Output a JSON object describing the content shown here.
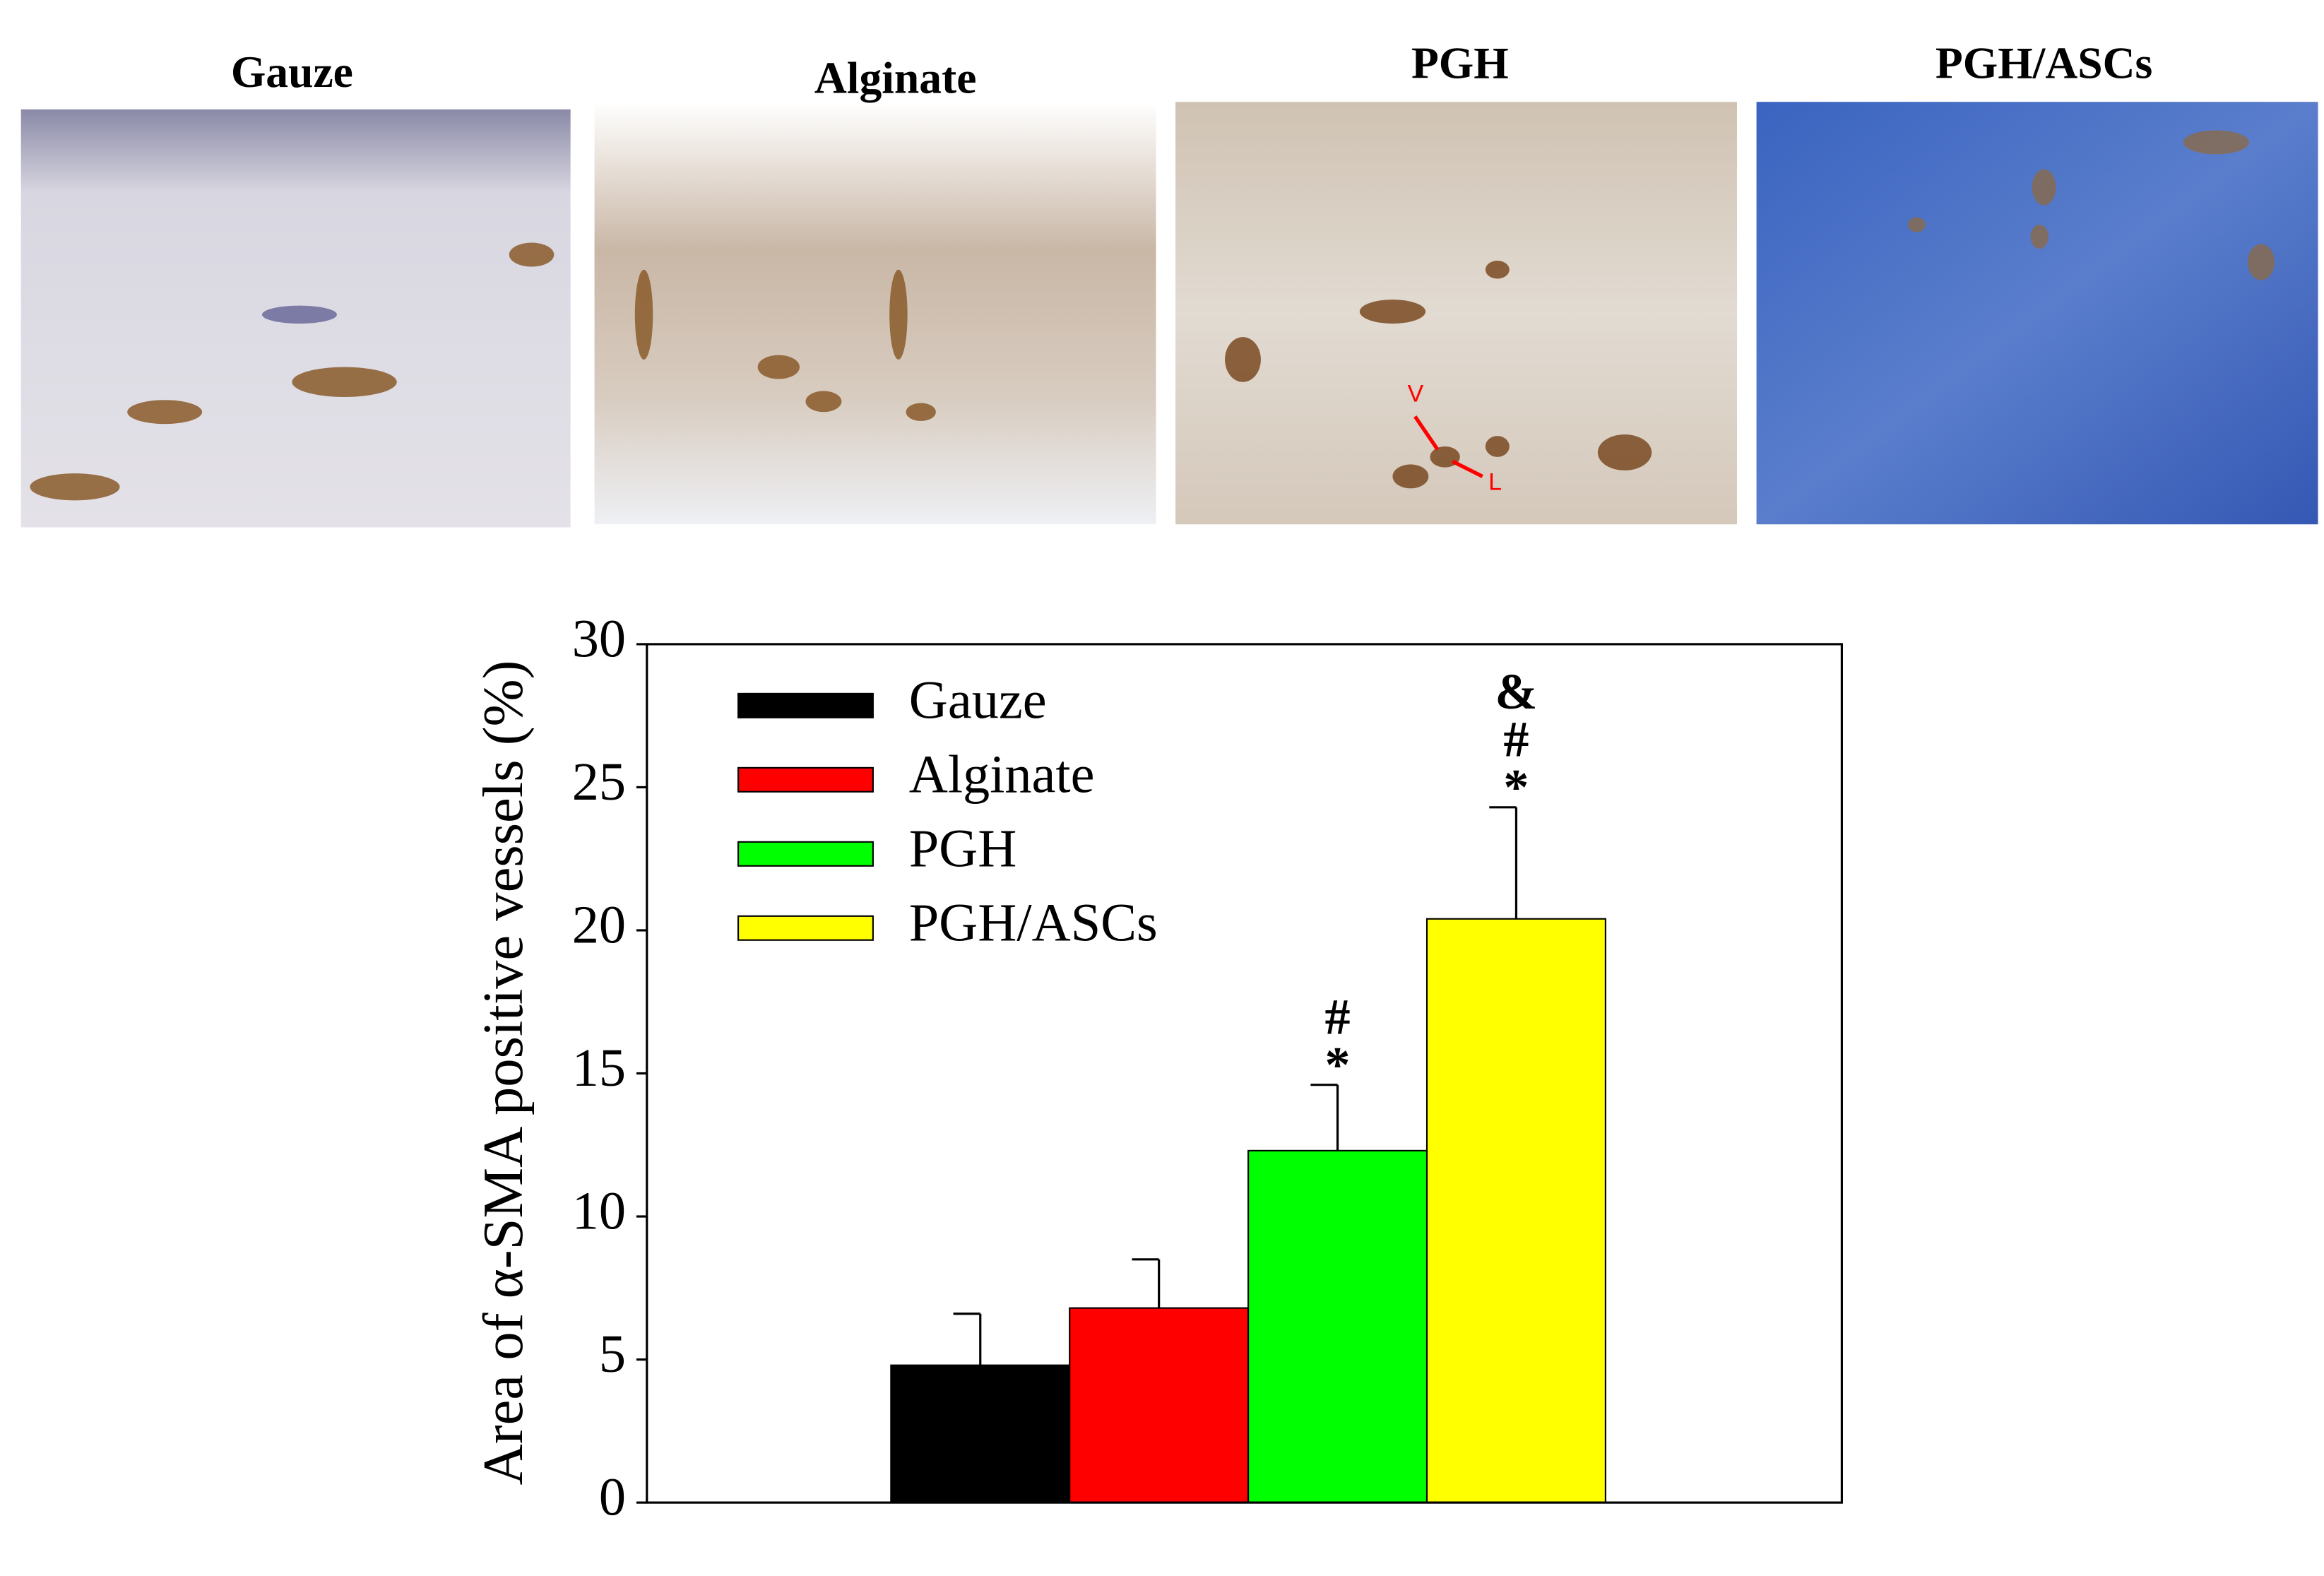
{
  "panels": [
    {
      "title": "Gauze"
    },
    {
      "title": "Alginate"
    },
    {
      "title": "PGH",
      "labels": [
        "V",
        "L"
      ]
    },
    {
      "title": "PGH/ASCs"
    }
  ],
  "chart_data": {
    "type": "bar",
    "y_label": "Area of α-SMA positive vessels (%)",
    "categories": [
      "Gauze",
      "Alginate",
      "PGH",
      "PGH/ASCs"
    ],
    "values": [
      4.8,
      6.8,
      12.3,
      20.4
    ],
    "errors": [
      1.8,
      1.7,
      2.3,
      3.9
    ],
    "colors": [
      "#000000",
      "#ff0000",
      "#00ff00",
      "#ffff00"
    ],
    "annotations": [
      [],
      [],
      [
        "#",
        "*"
      ],
      [
        "&",
        "#",
        "*"
      ]
    ],
    "ylim": [
      0,
      30
    ],
    "yticks": [
      0,
      5,
      10,
      15,
      20,
      25,
      30
    ],
    "legend": "upper-left"
  }
}
